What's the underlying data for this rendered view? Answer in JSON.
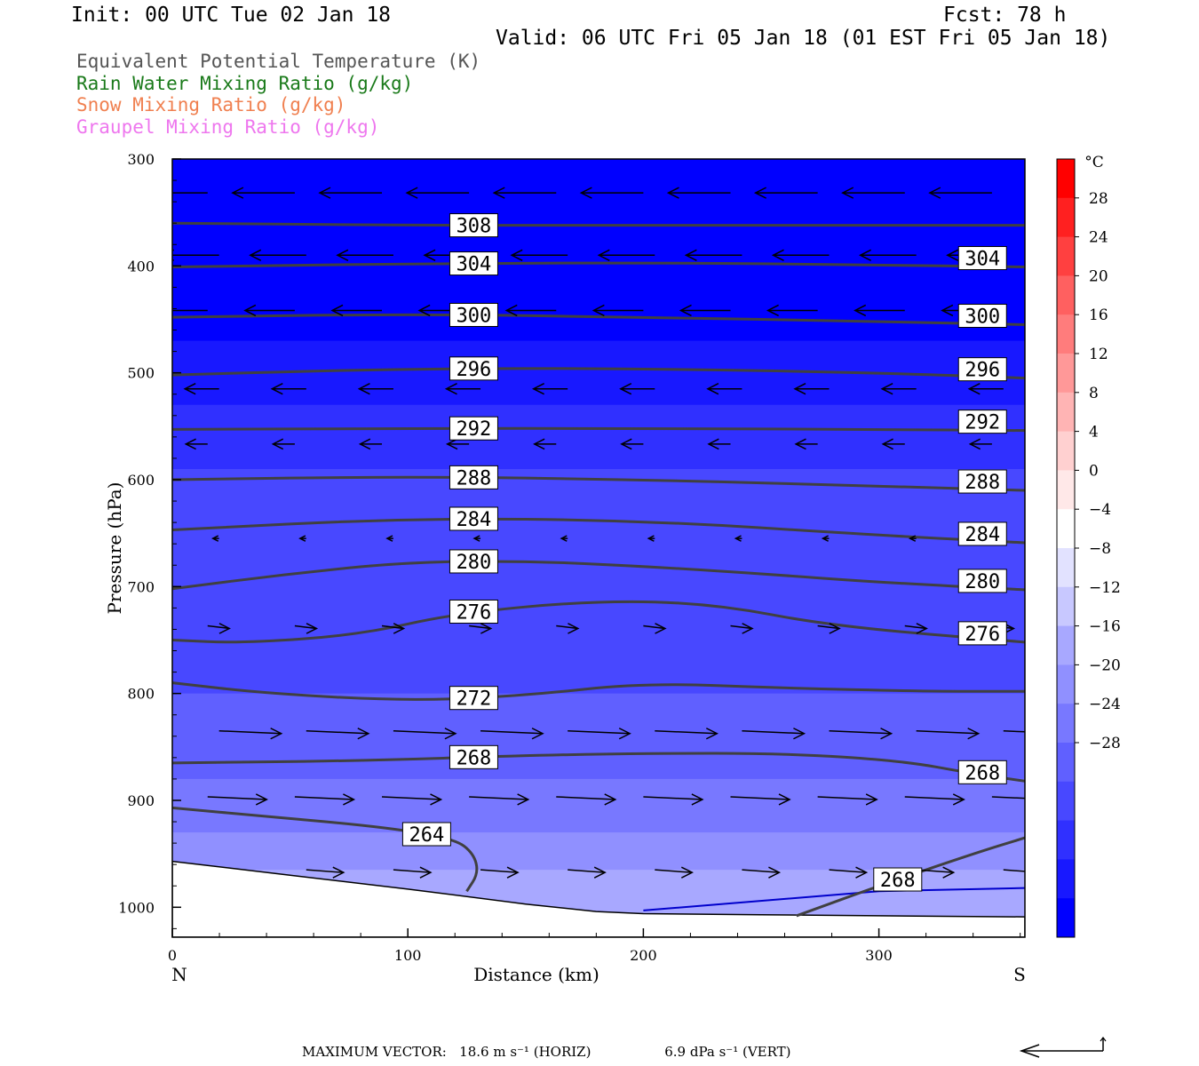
{
  "header": {
    "init": "Init: 00 UTC Tue 02 Jan 18",
    "fcst": "Fcst:   78 h",
    "valid": "Valid: 06 UTC Fri 05 Jan 18 (01 EST Fri 05 Jan 18)"
  },
  "legend": [
    {
      "label": "Equivalent Potential Temperature (K)",
      "color": "#555555"
    },
    {
      "label": "Rain Water Mixing Ratio (g/kg)",
      "color": "#1a7a1a"
    },
    {
      "label": "Snow Mixing Ratio (g/kg)",
      "color": "#f08050"
    },
    {
      "label": "Graupel Mixing Ratio (g/kg)",
      "color": "#ee77ee"
    }
  ],
  "chart_data": {
    "type": "heatmap",
    "subtype": "vertical cross-section with contours and wind vectors",
    "xlabel": "Distance (km)",
    "ylabel": "Pressure (hPa)",
    "xlim": [
      0,
      362
    ],
    "ylim": [
      1028,
      300
    ],
    "y_scale": "linear (inverted)",
    "x_ticks": [
      0,
      100,
      200,
      300
    ],
    "x_tick_labels": [
      "0",
      "100",
      "200",
      "300"
    ],
    "y_ticks": [
      300,
      400,
      500,
      600,
      700,
      800,
      900,
      1000
    ],
    "y_tick_labels": [
      "300",
      "400",
      "500",
      "600",
      "700",
      "800",
      "900",
      "1000"
    ],
    "x_end_labels": {
      "left": "N",
      "right": "S"
    },
    "colorbar": {
      "unit": "°C",
      "levels": [
        -32,
        -28,
        -24,
        -20,
        -16,
        -12,
        -8,
        -4,
        0,
        4,
        8,
        12,
        16,
        20,
        24,
        28,
        32
      ],
      "tick_labels": [
        "28",
        "24",
        "20",
        "16",
        "12",
        "8",
        "4",
        "0",
        "−4",
        "−8",
        "−12",
        "−16",
        "−20",
        "−24",
        "−28"
      ],
      "colors": [
        "#0000ff",
        "#1818ff",
        "#3030ff",
        "#4848ff",
        "#6060ff",
        "#7878ff",
        "#9090ff",
        "#a8a8ff",
        "#c8c8ff",
        "#e2e2ff",
        "#ffffff",
        "#ffe8e8",
        "#ffd0d0",
        "#ffb4b4",
        "#ff9898",
        "#ff7c7c",
        "#ff6060",
        "#ff4040",
        "#ff2020",
        "#ff0000"
      ]
    },
    "temperature_field_c": {
      "bands": [
        {
          "p_top": 300,
          "temp": -32
        },
        {
          "p_top": 470,
          "temp": -30
        },
        {
          "p_top": 530,
          "temp": -27
        },
        {
          "p_top": 590,
          "temp": -24
        },
        {
          "p_top": 700,
          "temp": -21
        },
        {
          "p_top": 800,
          "temp": -19
        },
        {
          "p_top": 880,
          "temp": -17
        },
        {
          "p_top": 930,
          "temp": -14
        },
        {
          "p_top": 965,
          "temp": -11
        }
      ]
    },
    "theta_e_contours": [
      {
        "value": 308,
        "label": "308",
        "x": [
          0,
          100,
          200,
          300,
          362
        ],
        "p": [
          360,
          362,
          362,
          362,
          362
        ]
      },
      {
        "value": 304,
        "label": "304",
        "x": [
          0,
          100,
          200,
          300,
          362
        ],
        "p": [
          401,
          398,
          397,
          399,
          401
        ]
      },
      {
        "value": 300,
        "label": "300",
        "x": [
          0,
          100,
          200,
          300,
          362
        ],
        "p": [
          448,
          445,
          448,
          452,
          455
        ]
      },
      {
        "value": 296,
        "label": "296",
        "x": [
          0,
          100,
          200,
          300,
          362
        ],
        "p": [
          502,
          496,
          496,
          500,
          505
        ]
      },
      {
        "value": 292,
        "label": "292",
        "x": [
          0,
          100,
          200,
          300,
          362
        ],
        "p": [
          553,
          552,
          552,
          553,
          554
        ]
      },
      {
        "value": 288,
        "label": "288",
        "x": [
          0,
          100,
          200,
          300,
          362
        ],
        "p": [
          600,
          597,
          600,
          606,
          610
        ]
      },
      {
        "value": 284,
        "label": "284",
        "x": [
          0,
          100,
          200,
          300,
          362
        ],
        "p": [
          647,
          636,
          638,
          652,
          659
        ]
      },
      {
        "value": 280,
        "label": "280",
        "x": [
          0,
          50,
          100,
          150,
          200,
          250,
          300,
          362
        ],
        "p": [
          702,
          688,
          677,
          676,
          681,
          688,
          696,
          703
        ]
      },
      {
        "value": 276,
        "label": "276",
        "x": [
          0,
          30,
          80,
          120,
          180,
          230,
          280,
          362
        ],
        "p": [
          750,
          753,
          745,
          725,
          713,
          716,
          737,
          752
        ]
      },
      {
        "value": 272,
        "label": "272",
        "x": [
          0,
          40,
          100,
          150,
          200,
          260,
          320,
          362
        ],
        "p": [
          790,
          800,
          807,
          802,
          790,
          795,
          798,
          798
        ]
      },
      {
        "value": 268,
        "label": "268",
        "x": [
          0,
          80,
          150,
          200,
          260,
          310,
          340,
          362
        ],
        "p": [
          865,
          863,
          858,
          856,
          856,
          863,
          875,
          882
        ]
      },
      {
        "value": 264,
        "label": "264",
        "x": [
          0,
          40,
          90,
          120,
          128,
          130,
          125
        ],
        "p": [
          907,
          915,
          925,
          936,
          950,
          968,
          985
        ]
      },
      {
        "value": 268,
        "label": "268",
        "x": [
          265,
          300,
          340,
          362
        ],
        "p": [
          1008,
          980,
          950,
          935
        ]
      }
    ],
    "rain_water_contour_g_per_kg": {
      "x": [
        200,
        300,
        362
      ],
      "p": [
        1003,
        985,
        982
      ]
    },
    "terrain_surface_hPa": {
      "x": [
        0,
        50,
        100,
        150,
        180,
        200,
        250,
        300,
        362
      ],
      "p": [
        957,
        970,
        983,
        997,
        1004,
        1006,
        1007,
        1008,
        1009
      ]
    },
    "wind_vectors": {
      "note": "Horizontal wind along section; negative = northward (leftward), positive = southward (rightward)",
      "rows": [
        {
          "p": 335,
          "u": -1.0
        },
        {
          "p": 385,
          "u": -0.9
        },
        {
          "p": 445,
          "u": -0.8
        },
        {
          "p": 510,
          "u": -0.55
        },
        {
          "p": 570,
          "u": -0.35
        },
        {
          "p": 650,
          "u": -0.1
        },
        {
          "p": 740,
          "u": 0.35
        },
        {
          "p": 830,
          "u": 1.0
        },
        {
          "p": 900,
          "u": 0.95
        },
        {
          "p": 960,
          "u": 0.6
        }
      ]
    }
  },
  "footer": {
    "prefix": "MAXIMUM VECTOR:",
    "horiz": "18.6 m s⁻¹ (HORIZ)",
    "vert": "6.9 dPa s⁻¹ (VERT)"
  }
}
